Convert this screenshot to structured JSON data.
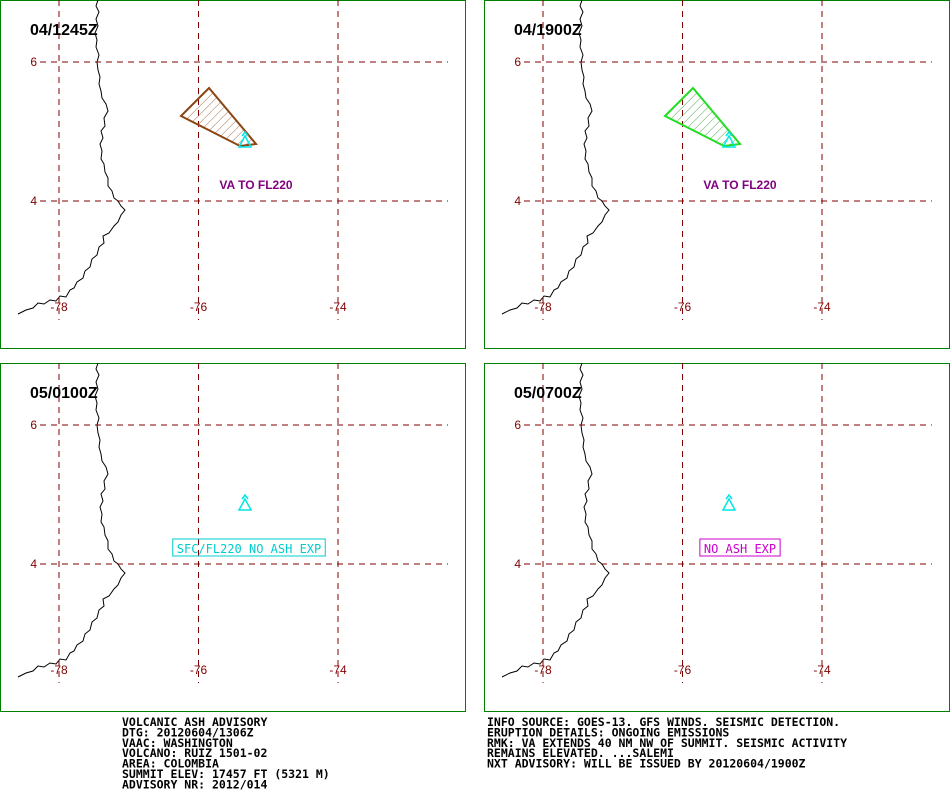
{
  "grid": {
    "lat": [
      6,
      4
    ],
    "lon": [
      -78,
      -76,
      -74
    ]
  },
  "panels": [
    {
      "time": "04/1245Z",
      "annotation": "VA TO FL220"
    },
    {
      "time": "04/1900Z",
      "annotation": "VA TO FL220"
    },
    {
      "time": "05/0100Z",
      "annotation": "SFC/FL220 NO ASH EXP"
    },
    {
      "time": "05/0700Z",
      "annotation": "NO ASH EXP"
    }
  ],
  "advisory_left": [
    "VOLCANIC ASH ADVISORY",
    "DTG: 20120604/1306Z",
    "VAAC: WASHINGTON",
    "VOLCANO: RUIZ 1501-02",
    "AREA: COLOMBIA",
    "SUMMIT ELEV: 17457 FT (5321 M)",
    "ADVISORY NR: 2012/014"
  ],
  "advisory_right": [
    "INFO SOURCE: GOES-13. GFS WINDS. SEISMIC DETECTION.",
    "ERUPTION DETAILS: ONGOING EMISSIONS",
    "RMK: VA EXTENDS 40 NM NW OF SUMMIT. SEISMIC ACTIVITY",
    "REMAINS ELEVATED. ...SALEMI",
    "NXT ADVISORY: WILL BE ISSUED BY 20120604/1900Z"
  ]
}
